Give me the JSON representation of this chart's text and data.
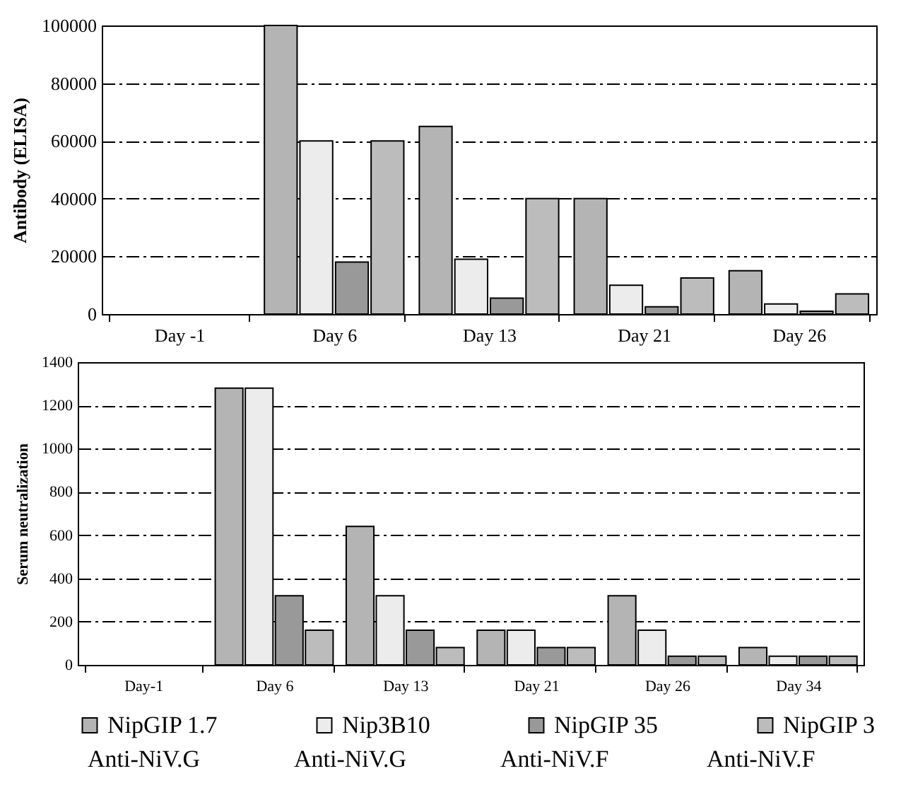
{
  "chart_data": [
    {
      "type": "bar",
      "ylabel": "Antibody (ELISA)",
      "categories": [
        "Day -1",
        "Day 6",
        "Day 13",
        "Day 21",
        "Day 26"
      ],
      "series": [
        {
          "color": "#b4b4b4",
          "values": [
            null,
            100000,
            65000,
            40000,
            15000
          ]
        },
        {
          "color": "#ececec",
          "values": [
            null,
            60000,
            19000,
            10000,
            3500
          ]
        },
        {
          "color": "#999999",
          "values": [
            null,
            18000,
            5500,
            2500,
            1000
          ]
        },
        {
          "color": "#bcbcbc",
          "values": [
            null,
            60000,
            40000,
            12500,
            7000
          ]
        }
      ],
      "ylim": [
        0,
        100000
      ],
      "yticks": [
        0,
        20000,
        40000,
        60000,
        80000,
        100000
      ],
      "grid": "y"
    },
    {
      "type": "bar",
      "ylabel": "Serum neutralization",
      "categories": [
        "Day-1",
        "Day 6",
        "Day 13",
        "Day 21",
        "Day 26",
        "Day 34"
      ],
      "series": [
        {
          "name": "NipGIP 1.7",
          "color": "#b4b4b4",
          "values": [
            null,
            1280,
            640,
            160,
            320,
            80
          ]
        },
        {
          "name": "Nip3B10",
          "color": "#ececec",
          "values": [
            null,
            1280,
            320,
            160,
            160,
            40
          ]
        },
        {
          "name": "NipGIP 35",
          "color": "#999999",
          "values": [
            null,
            320,
            160,
            80,
            40,
            40
          ]
        },
        {
          "name": "NipGIP 3",
          "color": "#bcbcbc",
          "values": [
            null,
            160,
            80,
            80,
            40,
            40
          ]
        }
      ],
      "ylim": [
        0,
        1400
      ],
      "yticks": [
        0,
        200,
        400,
        600,
        800,
        1000,
        1200,
        1400
      ],
      "grid": "y",
      "legend": "bottom",
      "annotations": [
        "Anti-NiV.G",
        "Anti-NiV.G",
        "Anti-NiV.F",
        "Anti-NiV.F"
      ]
    }
  ]
}
